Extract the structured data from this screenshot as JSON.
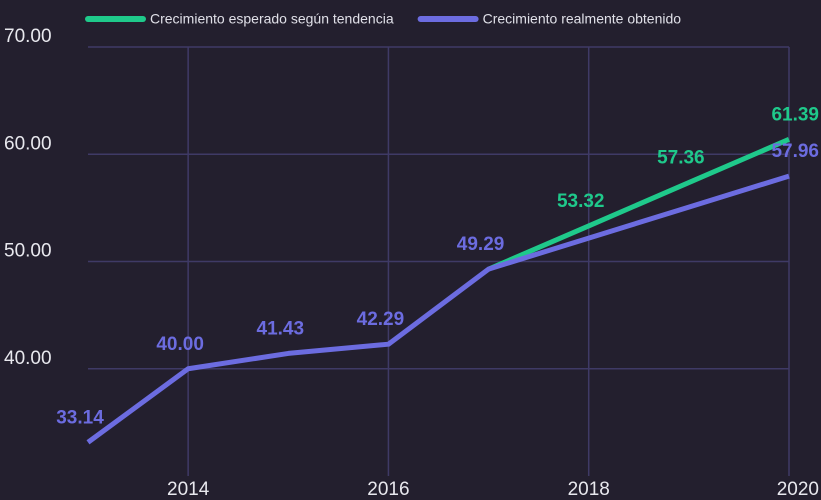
{
  "chart_data": {
    "type": "line",
    "x": [
      2013,
      2014,
      2015,
      2016,
      2017,
      2018,
      2019,
      2020
    ],
    "series": [
      {
        "name": "Crecimiento esperado según tendencia",
        "color": "#1fc98b",
        "values": [
          null,
          null,
          null,
          null,
          49.29,
          53.32,
          57.36,
          61.39
        ],
        "value_labels": [
          null,
          null,
          null,
          null,
          null,
          "53.32",
          "57.36",
          "61.39"
        ]
      },
      {
        "name": "Crecimiento realmente obtenido",
        "color": "#6c6ce0",
        "values": [
          33.14,
          40.0,
          41.43,
          42.29,
          49.29,
          52.18,
          55.07,
          57.96
        ],
        "value_labels": [
          "33.14",
          "40.00",
          "41.43",
          "42.29",
          "49.29",
          null,
          null,
          "57.96"
        ]
      }
    ],
    "xlim": [
      2013,
      2020
    ],
    "xticks": [
      2014,
      2016,
      2018,
      2020
    ],
    "ylim": [
      30,
      70
    ],
    "yticks": [
      {
        "value": 40,
        "label": "40.00"
      },
      {
        "value": 50,
        "label": "50.00"
      },
      {
        "value": 60,
        "label": "60.00"
      },
      {
        "value": 70,
        "label": "70.00"
      }
    ],
    "grid": true,
    "legend": "top"
  }
}
